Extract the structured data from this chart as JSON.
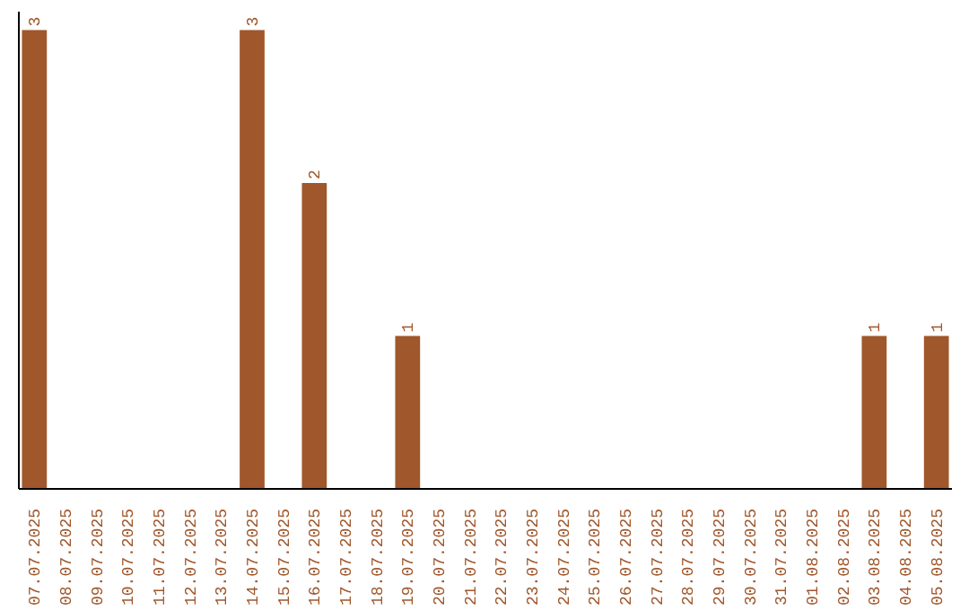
{
  "chart_data": {
    "type": "bar",
    "categories": [
      "07.07.2025",
      "08.07.2025",
      "09.07.2025",
      "10.07.2025",
      "11.07.2025",
      "12.07.2025",
      "13.07.2025",
      "14.07.2025",
      "15.07.2025",
      "16.07.2025",
      "17.07.2025",
      "18.07.2025",
      "19.07.2025",
      "20.07.2025",
      "21.07.2025",
      "22.07.2025",
      "23.07.2025",
      "24.07.2025",
      "25.07.2025",
      "26.07.2025",
      "27.07.2025",
      "28.07.2025",
      "29.07.2025",
      "30.07.2025",
      "31.07.2025",
      "01.08.2025",
      "02.08.2025",
      "03.08.2025",
      "04.08.2025",
      "05.08.2025"
    ],
    "values": [
      3,
      0,
      0,
      0,
      0,
      0,
      0,
      3,
      0,
      2,
      0,
      0,
      1,
      0,
      0,
      0,
      0,
      0,
      0,
      0,
      0,
      0,
      0,
      0,
      0,
      0,
      0,
      1,
      0,
      1
    ],
    "value_labels": [
      "3",
      null,
      null,
      null,
      null,
      null,
      null,
      "3",
      null,
      "2",
      null,
      null,
      "1",
      null,
      null,
      null,
      null,
      null,
      null,
      null,
      null,
      null,
      null,
      null,
      null,
      null,
      null,
      "1",
      null,
      "1"
    ],
    "color": "#a0572b",
    "grid": false
  }
}
